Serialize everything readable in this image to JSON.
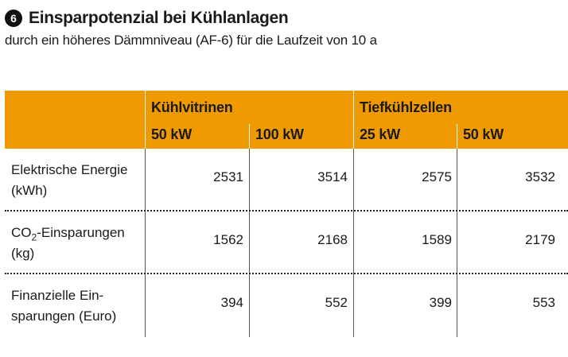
{
  "badge": "6",
  "title": "Einsparpotenzial bei Kühlanlagen",
  "subtitle": "durch ein höheres Dämmniveau (AF-6) für die Laufzeit von 10 a",
  "table": {
    "groups": [
      "Kühlvitrinen",
      "Tiefkühlzellen"
    ],
    "columns": [
      "50 kW",
      "100 kW",
      "25 kW",
      "50 kW"
    ],
    "rows": [
      {
        "label_line1": "Elektrische Energie",
        "label_line2": "(kWh)",
        "values": [
          "2531",
          "3514",
          "2575",
          "3532"
        ]
      },
      {
        "label_line1_pre": "CO",
        "label_line1_sub": "2",
        "label_line1_post": "-Einsparungen",
        "label_line2": "(kg)",
        "values": [
          "1562",
          "2168",
          "1589",
          "2179"
        ]
      },
      {
        "label_line1": "Finanzielle Ein-",
        "label_line2": "sparungen (Euro)",
        "values": [
          "394",
          "552",
          "399",
          "553"
        ]
      }
    ]
  },
  "colors": {
    "header_bg": "#ee9a00",
    "badge_bg": "#111111"
  }
}
